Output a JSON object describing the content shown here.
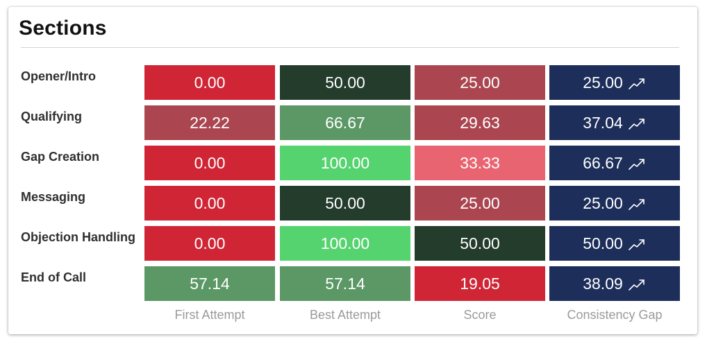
{
  "header": {
    "title": "Sections"
  },
  "columns": [
    "First Attempt",
    "Best Attempt",
    "Score",
    "Consistency Gap"
  ],
  "rows": [
    {
      "label": "Opener/Intro",
      "values": [
        "0.00",
        "50.00",
        "25.00",
        "25.00"
      ],
      "colors": [
        "#cf2535",
        "#243c2c",
        "#ab4650",
        "#1c2e59"
      ]
    },
    {
      "label": "Qualifying",
      "values": [
        "22.22",
        "66.67",
        "29.63",
        "37.04"
      ],
      "colors": [
        "#ab4650",
        "#5b9865",
        "#ab4650",
        "#1c2e59"
      ]
    },
    {
      "label": "Gap Creation",
      "values": [
        "0.00",
        "100.00",
        "33.33",
        "66.67"
      ],
      "colors": [
        "#cf2535",
        "#55d36f",
        "#e96471",
        "#1c2e59"
      ]
    },
    {
      "label": "Messaging",
      "values": [
        "0.00",
        "50.00",
        "25.00",
        "25.00"
      ],
      "colors": [
        "#cf2535",
        "#243c2c",
        "#ab4650",
        "#1c2e59"
      ]
    },
    {
      "label": "Objection Handling",
      "values": [
        "0.00",
        "100.00",
        "50.00",
        "50.00"
      ],
      "colors": [
        "#cf2535",
        "#55d36f",
        "#243c2c",
        "#1c2e59"
      ]
    },
    {
      "label": "End of Call",
      "values": [
        "57.14",
        "57.14",
        "19.05",
        "38.09"
      ],
      "colors": [
        "#5b9865",
        "#5b9865",
        "#cf2535",
        "#1c2e59"
      ]
    }
  ],
  "trend_icon": "trending-up-icon"
}
